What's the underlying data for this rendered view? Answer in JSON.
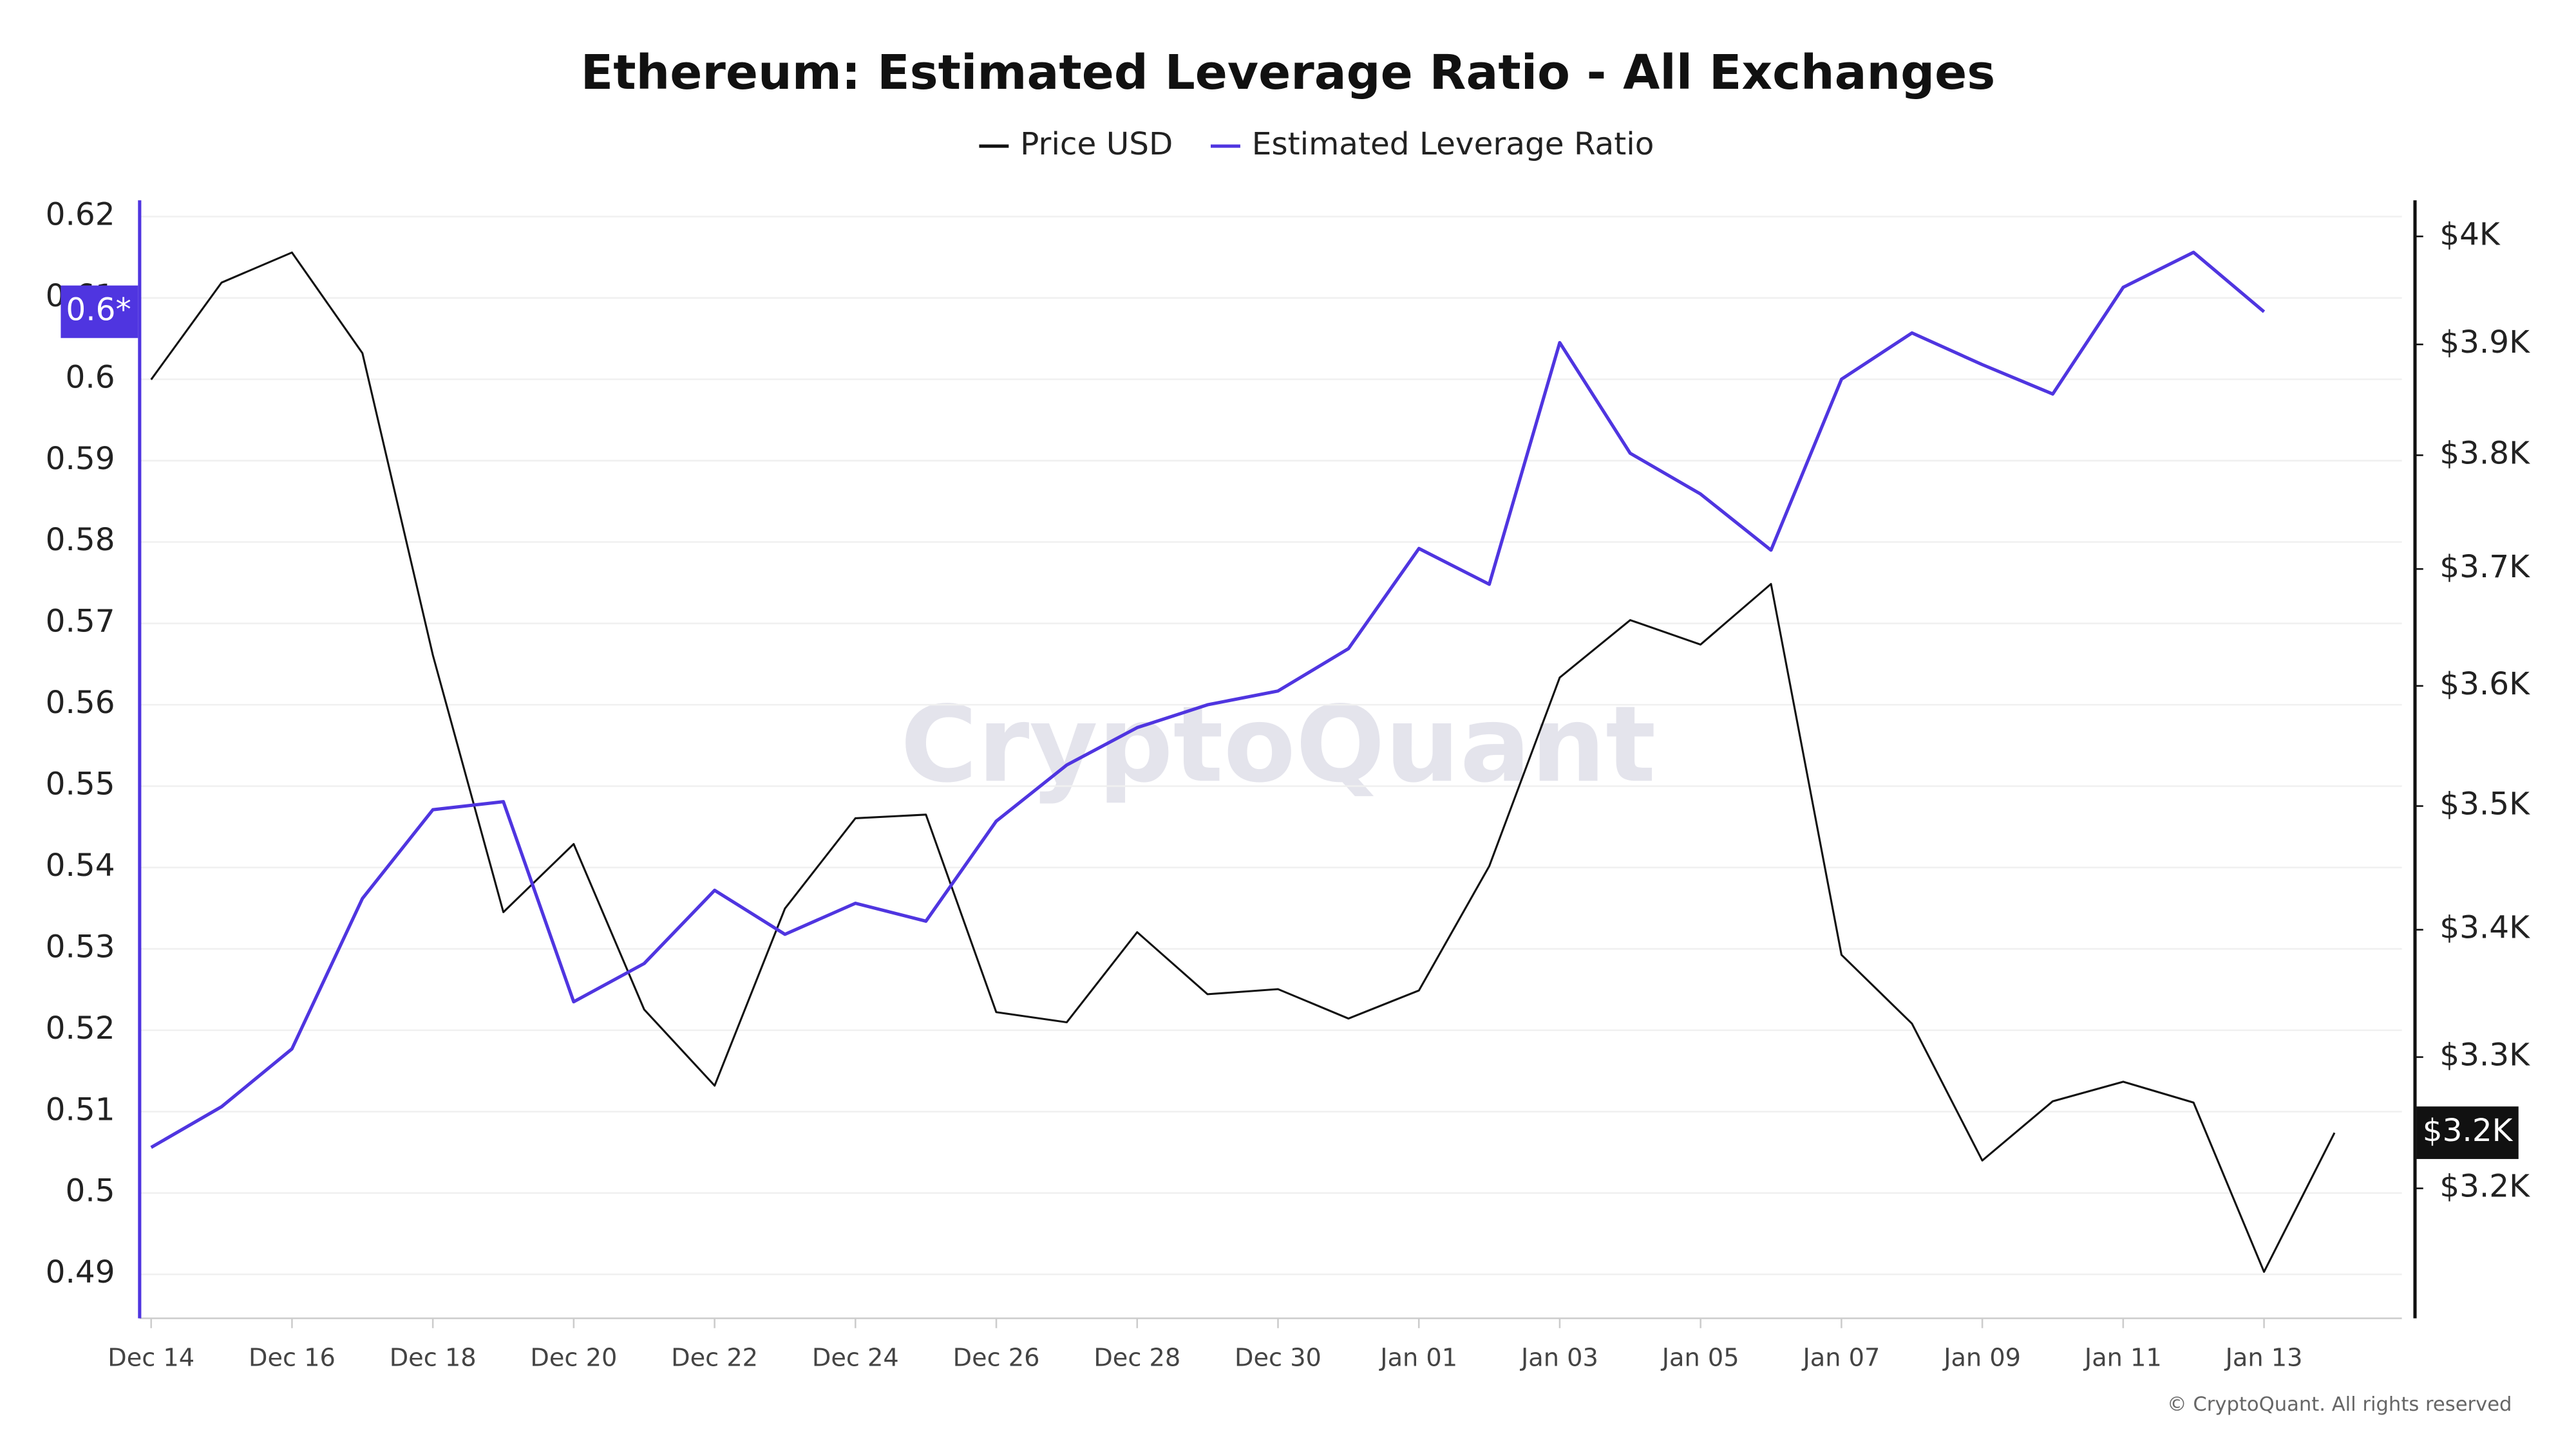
{
  "chart_data": {
    "type": "line",
    "title": "Ethereum: Estimated Leverage Ratio - All Exchanges",
    "watermark": "CryptoQuant",
    "footer": "© CryptoQuant. All rights reserved",
    "categories": [
      "Dec 14",
      null,
      "Dec 16",
      null,
      "Dec 18",
      null,
      "Dec 20",
      null,
      "Dec 22",
      null,
      "Dec 24",
      null,
      "Dec 26",
      null,
      "Dec 28",
      null,
      "Dec 30",
      null,
      "Jan 01",
      null,
      "Jan 03",
      null,
      "Jan 05",
      null,
      "Jan 07",
      null,
      "Jan 09",
      null,
      "Jan 11",
      null,
      "Jan 13",
      null
    ],
    "series": [
      {
        "name": "Price USD",
        "color": "#111111",
        "axis": "y2",
        "values": [
          3868,
          3957,
          3985,
          3892,
          3626,
          3414,
          3469,
          3337,
          3278,
          3417,
          3490,
          3493,
          3335,
          3327,
          3398,
          3349,
          3353,
          3330,
          3352,
          3451,
          3607,
          3656,
          3635,
          3687,
          3380,
          3326,
          3221,
          3266,
          3281,
          3265,
          3138,
          3242
        ],
        "badge": "$3.2K"
      },
      {
        "name": "Estimated Leverage Ratio",
        "color": "#4f35e0",
        "values": [
          0.5056,
          0.5106,
          0.5177,
          0.5362,
          0.5471,
          0.5481,
          0.5235,
          0.5282,
          0.5372,
          0.5318,
          0.5356,
          0.5334,
          0.5457,
          0.5526,
          0.5572,
          0.56,
          0.5617,
          0.5669,
          0.5792,
          0.5748,
          0.6045,
          0.5909,
          0.5859,
          0.579,
          0.6,
          0.6057,
          0.6018,
          0.5982,
          0.6113,
          0.6156,
          0.6083,
          null
        ],
        "badge": "0.6*"
      }
    ],
    "ylim": [
      0.4846,
      0.622
    ],
    "yticks": [
      0.49,
      0.5,
      0.51,
      0.52,
      0.53,
      0.54,
      0.55,
      0.56,
      0.57,
      0.58,
      0.59,
      0.6,
      0.61,
      0.62
    ],
    "y2lim": [
      3104,
      4034
    ],
    "y2log": true,
    "y2ticks": [
      {
        "value": 3200,
        "label": "$3.2K"
      },
      {
        "value": 3300,
        "label": "$3.3K"
      },
      {
        "value": 3400,
        "label": "$3.4K"
      },
      {
        "value": 3500,
        "label": "$3.5K"
      },
      {
        "value": 3600,
        "label": "$3.6K"
      },
      {
        "value": 3700,
        "label": "$3.7K"
      },
      {
        "value": 3800,
        "label": "$3.8K"
      },
      {
        "value": 3900,
        "label": "$3.9K"
      },
      {
        "value": 4000,
        "label": "$4K"
      }
    ],
    "grid": true
  }
}
